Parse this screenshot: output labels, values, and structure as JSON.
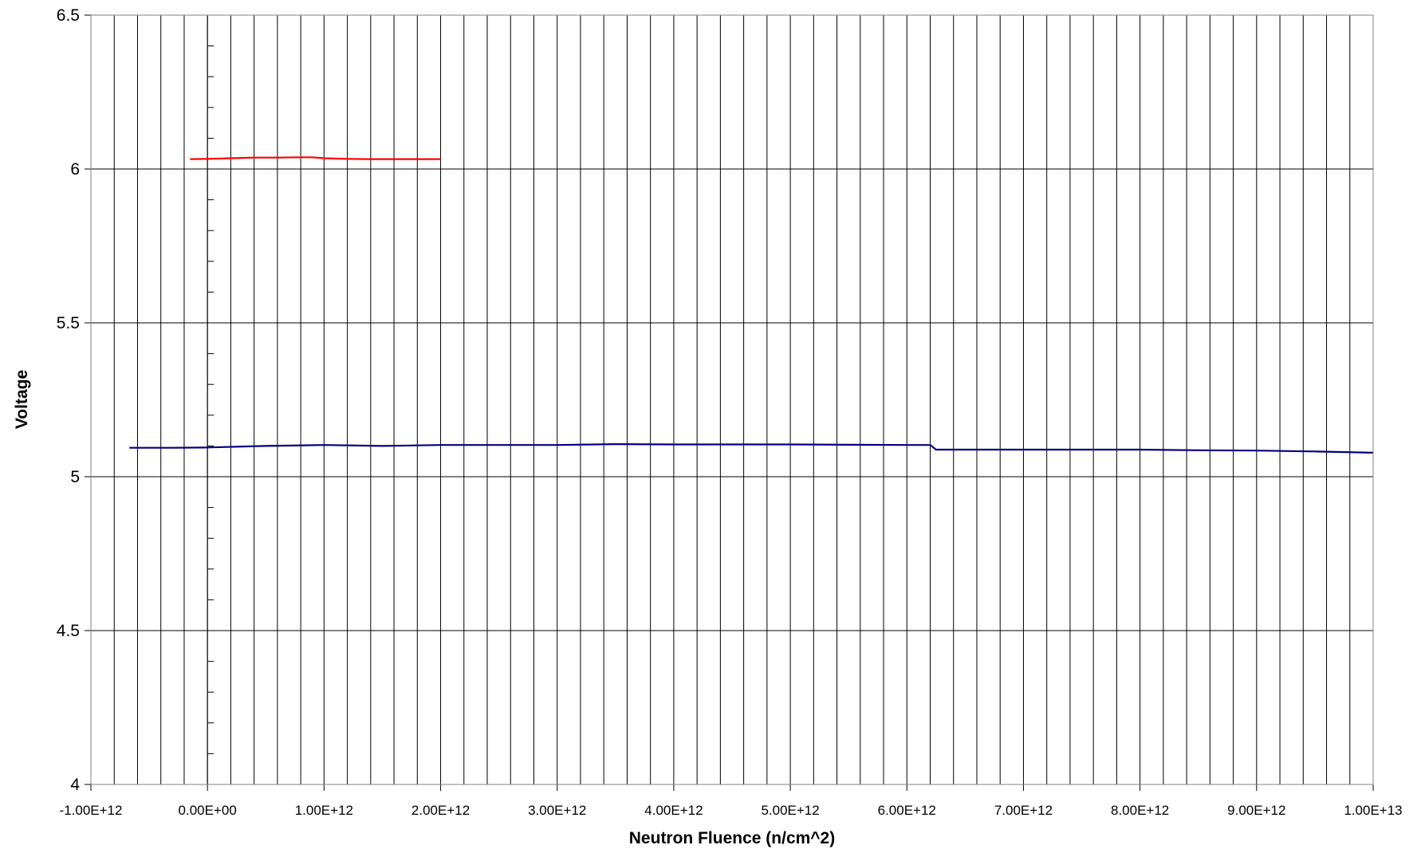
{
  "chart_data": {
    "type": "line",
    "title": "",
    "xlabel": "Neutron Fluence (n/cm^2)",
    "ylabel": "Voltage",
    "xlim": [
      -1000000000000.0,
      10000000000000.0
    ],
    "ylim": [
      4,
      6.5
    ],
    "x_tick_labels": [
      "-1.00E+12",
      "0.00E+00",
      "1.00E+12",
      "2.00E+12",
      "3.00E+12",
      "4.00E+12",
      "5.00E+12",
      "6.00E+12",
      "7.00E+12",
      "8.00E+12",
      "9.00E+12",
      "1.00E+13"
    ],
    "x_tick_values": [
      -1000000000000.0,
      0,
      1000000000000.0,
      2000000000000.0,
      3000000000000.0,
      4000000000000.0,
      5000000000000.0,
      6000000000000.0,
      7000000000000.0,
      8000000000000.0,
      9000000000000.0,
      10000000000000.0
    ],
    "y_tick_labels": [
      "4",
      "4.5",
      "5",
      "5.5",
      "6",
      "6.5"
    ],
    "y_tick_values": [
      4,
      4.5,
      5,
      5.5,
      6,
      6.5
    ],
    "x_minor_step": 200000000000.0,
    "y_minor_step": 0.1,
    "grid": true,
    "legend": "none",
    "series": [
      {
        "color": "#ff0000",
        "x": [
          -150000000000.0,
          0,
          200000000000.0,
          400000000000.0,
          600000000000.0,
          800000000000.0,
          900000000000.0,
          1000000000000.0,
          1200000000000.0,
          1400000000000.0,
          1600000000000.0,
          1800000000000.0,
          2000000000000.0
        ],
        "y": [
          6.032,
          6.033,
          6.035,
          6.037,
          6.037,
          6.038,
          6.038,
          6.035,
          6.033,
          6.032,
          6.032,
          6.032,
          6.032
        ]
      },
      {
        "color": "#000080",
        "x": [
          -670000000000.0,
          -300000000000.0,
          0,
          500000000000.0,
          1000000000000.0,
          1500000000000.0,
          2000000000000.0,
          2500000000000.0,
          3000000000000.0,
          3500000000000.0,
          4000000000000.0,
          4500000000000.0,
          5000000000000.0,
          5500000000000.0,
          6000000000000.0,
          6200000000000.0,
          6250000000000.0,
          7000000000000.0,
          8000000000000.0,
          8500000000000.0,
          9000000000000.0,
          9500000000000.0,
          10000000000000.0
        ],
        "y": [
          5.094,
          5.094,
          5.095,
          5.1,
          5.103,
          5.1,
          5.103,
          5.103,
          5.103,
          5.106,
          5.105,
          5.105,
          5.105,
          5.104,
          5.103,
          5.103,
          5.088,
          5.088,
          5.088,
          5.086,
          5.085,
          5.082,
          5.078
        ]
      }
    ]
  }
}
